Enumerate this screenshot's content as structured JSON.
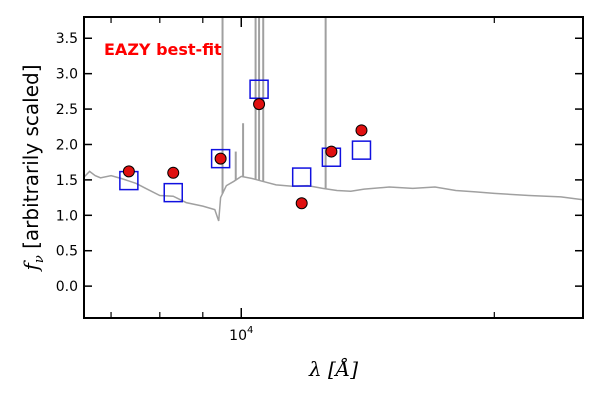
{
  "chart_data": {
    "type": "scatter",
    "annotation": "EAZY best-fit",
    "xlabel_symbol": "λ",
    "xlabel_unit": "[Å]",
    "ylabel_symbol": "f",
    "ylabel_sub": "ν",
    "ylabel_text": " [arbitrarily scaled]",
    "xscale": "log",
    "xlim": [
      6500,
      25500
    ],
    "ylim": [
      -0.45,
      3.8
    ],
    "xtick_major_label": {
      "base": "10",
      "exp": "4",
      "value": 10000
    },
    "xticks_minor": [
      7000,
      8000,
      9000,
      20000
    ],
    "yticks": [
      0.0,
      0.5,
      1.0,
      1.5,
      2.0,
      2.5,
      3.0,
      3.5
    ],
    "ytick_labels": [
      "0.0",
      "0.5",
      "1.0",
      "1.5",
      "2.0",
      "2.5",
      "3.0",
      "3.5"
    ],
    "series": [
      {
        "kind": "points",
        "marker": "circle",
        "x": [
          7350,
          8300,
          9450,
          10500,
          11800,
          12800,
          13900
        ],
        "y": [
          1.62,
          1.6,
          1.8,
          2.57,
          1.17,
          1.9,
          2.2
        ]
      },
      {
        "kind": "points",
        "marker": "square",
        "x": [
          7350,
          8300,
          9450,
          10500,
          11800,
          12800,
          13900
        ],
        "y": [
          1.49,
          1.32,
          1.8,
          2.78,
          1.54,
          1.82,
          1.92
        ]
      },
      {
        "kind": "line",
        "x": [
          6500,
          6600,
          6700,
          6800,
          7000,
          7200,
          7500,
          7700,
          8000,
          8300,
          8600,
          9000,
          9300,
          9400,
          9450,
          9600,
          9800,
          10000,
          10300,
          10600,
          11000,
          11500,
          12000,
          12500,
          13000,
          13500,
          14000,
          15000,
          16000,
          17000,
          18000,
          19000,
          20000,
          22000,
          24000,
          25500
        ],
        "y": [
          1.54,
          1.62,
          1.56,
          1.53,
          1.56,
          1.52,
          1.45,
          1.38,
          1.28,
          1.27,
          1.18,
          1.13,
          1.08,
          0.92,
          1.25,
          1.42,
          1.48,
          1.55,
          1.52,
          1.48,
          1.43,
          1.41,
          1.42,
          1.38,
          1.35,
          1.34,
          1.37,
          1.4,
          1.38,
          1.4,
          1.35,
          1.33,
          1.31,
          1.28,
          1.26,
          1.22
        ]
      }
    ],
    "emission_lines": [
      {
        "x": 9500,
        "peak": 3.8
      },
      {
        "x": 10400,
        "peak": 3.8
      },
      {
        "x": 10500,
        "peak": 3.8
      },
      {
        "x": 10620,
        "peak": 3.8
      },
      {
        "x": 12600,
        "peak": 3.8
      },
      {
        "x": 10050,
        "peak": 2.3
      },
      {
        "x": 9850,
        "peak": 1.9
      }
    ],
    "colors": {
      "points": "#e01010",
      "points_edge": "#000000",
      "squares": "#1010e0",
      "spectrum": "#a0a0a0",
      "annotation": "#ff0000",
      "axes": "#000000"
    }
  }
}
